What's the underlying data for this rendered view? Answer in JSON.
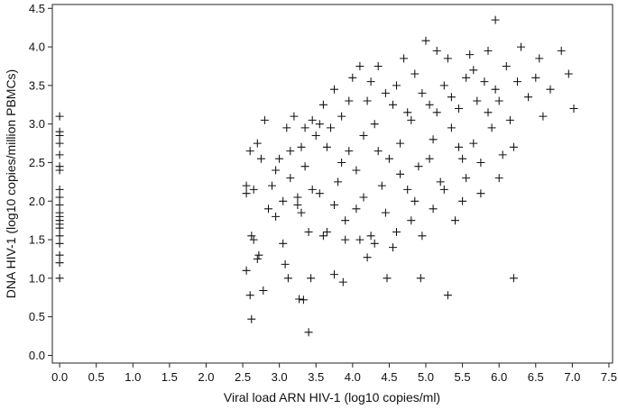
{
  "chart_data": {
    "type": "scatter",
    "title": "",
    "xlabel": "Viral load ARN HIV-1 (log10 copies/ml)",
    "ylabel": "DNA HIV-1 (log10 copies/million PBMCs)",
    "xlim": [
      -0.1,
      7.55
    ],
    "ylim": [
      -0.1,
      4.55
    ],
    "x_ticks": [
      0.0,
      0.5,
      1.0,
      1.5,
      2.0,
      2.5,
      3.0,
      3.5,
      4.0,
      4.5,
      5.0,
      5.5,
      6.0,
      6.5,
      7.0,
      7.5
    ],
    "x_tick_labels": [
      "0.0",
      "0.5",
      "1.0",
      "1.5",
      "2.0",
      "2.5",
      "3.0",
      "3.5",
      "4.0",
      "4.5",
      "5.0",
      "5.5",
      "6.0",
      "6.5",
      "7.0",
      "7.5"
    ],
    "y_ticks": [
      0.0,
      0.5,
      1.0,
      1.5,
      2.0,
      2.5,
      3.0,
      3.5,
      4.0,
      4.5
    ],
    "y_tick_labels": [
      "0.0",
      "0.5",
      "1.0",
      "1.5",
      "2.0",
      "2.5",
      "3.0",
      "3.5",
      "4.0",
      "4.5"
    ],
    "grid": false,
    "marker": "plus",
    "marker_color": "#111111",
    "points": [
      [
        0.0,
        3.1
      ],
      [
        0.0,
        2.9
      ],
      [
        0.0,
        2.85
      ],
      [
        0.0,
        2.75
      ],
      [
        0.0,
        2.6
      ],
      [
        0.0,
        2.45
      ],
      [
        0.0,
        2.4
      ],
      [
        0.0,
        2.15
      ],
      [
        0.0,
        2.05
      ],
      [
        0.0,
        1.95
      ],
      [
        0.0,
        1.85
      ],
      [
        0.0,
        1.8
      ],
      [
        0.0,
        1.75
      ],
      [
        0.0,
        1.7
      ],
      [
        0.0,
        1.65
      ],
      [
        0.0,
        1.55
      ],
      [
        0.0,
        1.45
      ],
      [
        0.0,
        1.3
      ],
      [
        0.0,
        1.2
      ],
      [
        0.0,
        1.0
      ],
      [
        2.55,
        1.1
      ],
      [
        2.6,
        0.78
      ],
      [
        2.62,
        0.47
      ],
      [
        2.78,
        0.84
      ],
      [
        3.12,
        1.0
      ],
      [
        3.27,
        0.73
      ],
      [
        3.33,
        0.72
      ],
      [
        3.4,
        0.3
      ],
      [
        3.43,
        1.0
      ],
      [
        3.87,
        0.95
      ],
      [
        4.47,
        1.0
      ],
      [
        4.93,
        1.0
      ],
      [
        5.3,
        0.78
      ],
      [
        6.2,
        1.0
      ],
      [
        3.08,
        1.18
      ],
      [
        2.72,
        1.3
      ],
      [
        3.75,
        1.05
      ],
      [
        4.2,
        1.27
      ],
      [
        2.55,
        2.2
      ],
      [
        2.55,
        2.1
      ],
      [
        2.6,
        2.65
      ],
      [
        2.62,
        1.55
      ],
      [
        2.7,
        2.75
      ],
      [
        2.8,
        3.05
      ],
      [
        2.9,
        2.2
      ],
      [
        2.95,
        1.8
      ],
      [
        3.0,
        2.55
      ],
      [
        3.05,
        1.45
      ],
      [
        3.1,
        2.95
      ],
      [
        3.15,
        2.3
      ],
      [
        3.2,
        3.1
      ],
      [
        3.25,
        1.95
      ],
      [
        3.3,
        2.7
      ],
      [
        3.35,
        2.45
      ],
      [
        3.4,
        1.6
      ],
      [
        3.45,
        3.05
      ],
      [
        3.5,
        2.85
      ],
      [
        3.55,
        2.1
      ],
      [
        3.6,
        3.25
      ],
      [
        3.65,
        1.6
      ],
      [
        3.7,
        2.95
      ],
      [
        3.75,
        3.45
      ],
      [
        3.8,
        2.25
      ],
      [
        3.85,
        3.1
      ],
      [
        3.9,
        1.75
      ],
      [
        3.95,
        2.65
      ],
      [
        4.0,
        3.6
      ],
      [
        4.05,
        2.4
      ],
      [
        4.1,
        3.75
      ],
      [
        4.15,
        2.05
      ],
      [
        4.2,
        3.3
      ],
      [
        4.25,
        1.55
      ],
      [
        4.3,
        3.0
      ],
      [
        4.35,
        3.75
      ],
      [
        4.4,
        2.2
      ],
      [
        4.45,
        3.4
      ],
      [
        4.5,
        2.55
      ],
      [
        4.55,
        1.4
      ],
      [
        4.6,
        3.5
      ],
      [
        4.65,
        2.75
      ],
      [
        4.7,
        3.85
      ],
      [
        4.75,
        2.15
      ],
      [
        4.8,
        3.05
      ],
      [
        4.85,
        3.65
      ],
      [
        4.9,
        2.45
      ],
      [
        4.95,
        1.55
      ],
      [
        5.0,
        4.08
      ],
      [
        5.05,
        3.25
      ],
      [
        5.1,
        2.8
      ],
      [
        5.15,
        3.95
      ],
      [
        5.2,
        2.25
      ],
      [
        5.25,
        3.5
      ],
      [
        5.3,
        3.85
      ],
      [
        5.35,
        2.95
      ],
      [
        5.4,
        1.75
      ],
      [
        5.45,
        3.2
      ],
      [
        5.5,
        2.55
      ],
      [
        5.55,
        3.6
      ],
      [
        5.6,
        3.9
      ],
      [
        5.65,
        2.75
      ],
      [
        5.7,
        3.3
      ],
      [
        5.75,
        2.1
      ],
      [
        5.8,
        3.55
      ],
      [
        5.85,
        3.95
      ],
      [
        5.9,
        2.95
      ],
      [
        5.95,
        4.35
      ],
      [
        6.0,
        3.3
      ],
      [
        6.05,
        2.6
      ],
      [
        6.1,
        3.75
      ],
      [
        6.15,
        3.05
      ],
      [
        6.2,
        2.7
      ],
      [
        6.25,
        3.55
      ],
      [
        6.3,
        4.0
      ],
      [
        6.4,
        3.35
      ],
      [
        6.5,
        3.6
      ],
      [
        6.55,
        3.85
      ],
      [
        6.6,
        3.1
      ],
      [
        6.7,
        3.45
      ],
      [
        6.85,
        3.95
      ],
      [
        6.95,
        3.65
      ],
      [
        7.02,
        3.2
      ],
      [
        5.95,
        3.45
      ],
      [
        5.85,
        3.15
      ],
      [
        5.75,
        2.5
      ],
      [
        5.65,
        3.7
      ],
      [
        5.55,
        2.3
      ],
      [
        5.45,
        2.7
      ],
      [
        5.35,
        3.35
      ],
      [
        5.25,
        2.15
      ],
      [
        5.15,
        3.15
      ],
      [
        5.05,
        2.55
      ],
      [
        4.95,
        3.4
      ],
      [
        4.85,
        2.0
      ],
      [
        4.75,
        3.15
      ],
      [
        4.65,
        2.35
      ],
      [
        4.55,
        3.25
      ],
      [
        4.45,
        1.85
      ],
      [
        4.35,
        2.65
      ],
      [
        4.25,
        3.55
      ],
      [
        4.15,
        2.85
      ],
      [
        4.05,
        1.9
      ],
      [
        3.95,
        3.3
      ],
      [
        3.85,
        2.5
      ],
      [
        3.75,
        1.95
      ],
      [
        3.65,
        2.7
      ],
      [
        3.55,
        3.0
      ],
      [
        3.45,
        2.15
      ],
      [
        3.35,
        2.95
      ],
      [
        3.25,
        2.05
      ],
      [
        3.15,
        2.65
      ],
      [
        3.05,
        2.0
      ],
      [
        2.95,
        2.4
      ],
      [
        2.85,
        1.9
      ],
      [
        2.75,
        2.55
      ],
      [
        2.65,
        2.15
      ],
      [
        2.65,
        1.5
      ],
      [
        2.7,
        1.25
      ],
      [
        4.3,
        1.45
      ],
      [
        4.6,
        1.6
      ],
      [
        4.1,
        1.5
      ],
      [
        3.9,
        1.5
      ],
      [
        5.5,
        2.0
      ],
      [
        6.0,
        2.3
      ],
      [
        5.1,
        1.9
      ],
      [
        4.8,
        1.75
      ],
      [
        3.6,
        1.55
      ],
      [
        3.3,
        1.85
      ]
    ]
  }
}
